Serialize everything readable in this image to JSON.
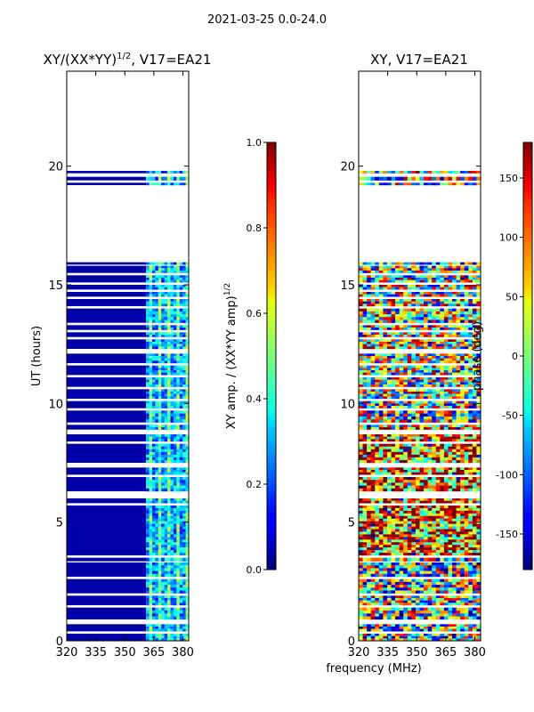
{
  "figure": {
    "suptitle": "2021-03-25 0.0-24.0",
    "shared_xlabel": "frequency (MHz)"
  },
  "chart_data": [
    {
      "type": "heatmap",
      "title_main": "XY/(XX*YY)",
      "title_sup": "1/2",
      "title_rest": ", V17=EA21",
      "xlabel": "",
      "ylabel": "UT (hours)",
      "xlim": [
        320,
        383
      ],
      "ylim": [
        0,
        24
      ],
      "xticks": [
        320,
        335,
        350,
        365,
        380
      ],
      "yticks": [
        0,
        5,
        10,
        15,
        20
      ],
      "colorbar": {
        "label_main": "XY amp. / (XX*YY amp)",
        "label_sup": "1/2",
        "range": [
          0.0,
          1.0
        ],
        "ticks": [
          "0.0",
          "0.2",
          "0.4",
          "0.6",
          "0.8",
          "1.0"
        ],
        "colormap": "jet"
      },
      "description_values": {
        "low_band_mhz": [
          320,
          361
        ],
        "low_band_value": 0.0,
        "high_band_mhz": [
          361,
          383
        ],
        "high_band_value_range": [
          0.1,
          0.6
        ]
      }
    },
    {
      "type": "heatmap",
      "title_main": "XY, V17=EA21",
      "xlabel": "frequency (MHz)",
      "ylabel": "",
      "xlim": [
        320,
        383
      ],
      "ylim": [
        0,
        24
      ],
      "xticks": [
        320,
        335,
        350,
        365,
        380
      ],
      "yticks": [
        0,
        5,
        10,
        15,
        20
      ],
      "colorbar": {
        "label_main": "phase (deg)",
        "range": [
          -180,
          180
        ],
        "ticks": [
          "-150",
          "-100",
          "-50",
          "0",
          "50",
          "100",
          "150"
        ],
        "tick_values": [
          -150,
          -100,
          -50,
          0,
          50,
          100,
          150
        ],
        "colormap": "jet"
      }
    }
  ],
  "data_rows_ut": [
    [
      0.0,
      0.3
    ],
    [
      0.4,
      0.7
    ],
    [
      0.9,
      1.4
    ],
    [
      1.5,
      1.9
    ],
    [
      2.0,
      2.6
    ],
    [
      2.7,
      3.3
    ],
    [
      3.35,
      3.5
    ],
    [
      3.6,
      5.7
    ],
    [
      5.8,
      6.0
    ],
    [
      6.3,
      6.9
    ],
    [
      7.0,
      7.3
    ],
    [
      7.5,
      8.3
    ],
    [
      8.4,
      8.7
    ],
    [
      8.9,
      9.1
    ],
    [
      9.2,
      9.7
    ],
    [
      9.8,
      10.1
    ],
    [
      10.2,
      10.6
    ],
    [
      10.7,
      11.1
    ],
    [
      11.2,
      11.6
    ],
    [
      11.7,
      12.1
    ],
    [
      12.3,
      12.7
    ],
    [
      12.8,
      13.0
    ],
    [
      13.1,
      13.3
    ],
    [
      13.4,
      14.0
    ],
    [
      14.1,
      14.4
    ],
    [
      14.5,
      14.7
    ],
    [
      14.8,
      15.0
    ],
    [
      15.1,
      15.4
    ],
    [
      15.5,
      15.8
    ],
    [
      15.85,
      15.95
    ],
    [
      19.2,
      19.3
    ],
    [
      19.4,
      19.55
    ],
    [
      19.7,
      19.8
    ]
  ]
}
